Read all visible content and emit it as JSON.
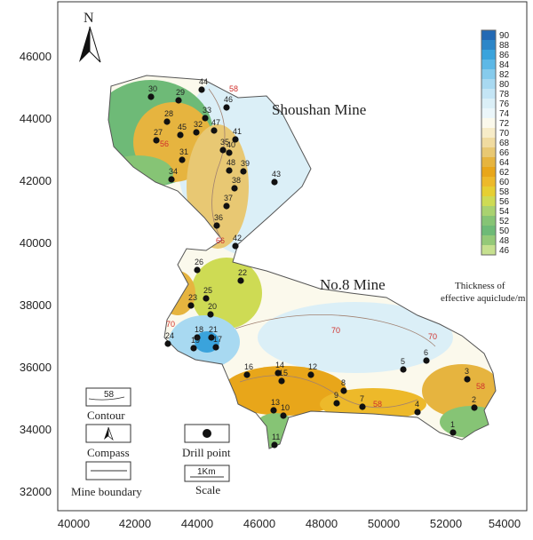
{
  "map": {
    "north_label": "N",
    "mine_labels": {
      "upper": "Shoushan Mine",
      "lower": "No.8 Mine"
    },
    "x_axis_ticks": [
      "40000",
      "42000",
      "44000",
      "46000",
      "48000",
      "50000",
      "52000",
      "54000"
    ],
    "y_axis_ticks": [
      "46000",
      "44000",
      "42000",
      "40000",
      "38000",
      "36000",
      "34000",
      "32000"
    ],
    "contour_labels": [
      "58",
      "56",
      "66",
      "70",
      "70",
      "70",
      "58",
      "58"
    ]
  },
  "legend": {
    "colorbar_values": [
      "90",
      "88",
      "86",
      "84",
      "82",
      "80",
      "78",
      "76",
      "74",
      "72",
      "70",
      "68",
      "66",
      "64",
      "62",
      "60",
      "58",
      "56",
      "54",
      "52",
      "50",
      "48",
      "46"
    ],
    "colorbar_colors": [
      "#2369b4",
      "#2c86c8",
      "#3aa3dc",
      "#5db8e6",
      "#86cbec",
      "#a8d9f1",
      "#c4e5f5",
      "#dbeff7",
      "#ebf6fa",
      "#fbf9ec",
      "#f7ecc8",
      "#f0dba0",
      "#e8c873",
      "#e6b43f",
      "#e8a61a",
      "#edb92a",
      "#e6cf32",
      "#cedb54",
      "#a9d270",
      "#86c475",
      "#6eba77",
      "#94c978",
      "#c6e08f"
    ],
    "title_line1": "Thickness of",
    "title_line2": "effective aquiclude/m",
    "items": {
      "contour": "Contour",
      "contour_sample": "58",
      "compass": "Compass",
      "mine_boundary": "Mine boundary",
      "drill_point": "Drill point",
      "scale": "Scale",
      "scale_sample": "1Km"
    }
  },
  "drill_holes": [
    "30",
    "29",
    "44",
    "28",
    "33",
    "46",
    "45",
    "32",
    "47",
    "27",
    "35",
    "31",
    "41",
    "40",
    "34",
    "48",
    "39",
    "43",
    "38",
    "37",
    "36",
    "42",
    "26",
    "22",
    "23",
    "25",
    "20",
    "21",
    "18",
    "19",
    "17",
    "24",
    "16",
    "14",
    "15",
    "12",
    "5",
    "6",
    "3",
    "13",
    "8",
    "9",
    "10",
    "7",
    "4",
    "2",
    "11",
    "1"
  ]
}
